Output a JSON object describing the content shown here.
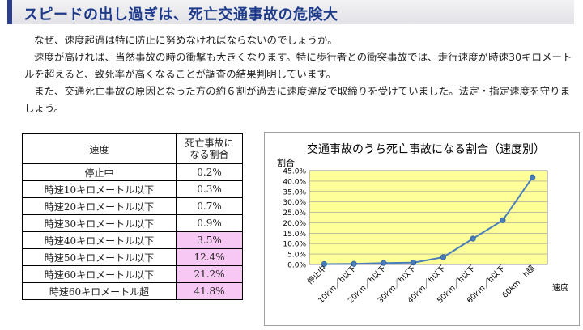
{
  "header": {
    "title": "スピードの出し過ぎは、死亡交通事故の危険大"
  },
  "paragraphs": [
    "なぜ、速度超過は特に防止に努めなければならないのでしょうか。",
    "速度が高ければ、当然事故の時の衝撃も大きくなります。特に歩行者との衝突事故では、走行速度が時速30キロメートルを超えると、致死率が高くなることが調査の結果判明しています。",
    "また、交通死亡事故の原因となった方の約６割が過去に速度違反で取締りを受けていました。法定・指定速度を守りましょう。"
  ],
  "table": {
    "headers": [
      "速度",
      "死亡事故に",
      "なる割合"
    ],
    "rows": [
      {
        "speed": "停止中",
        "rate": "0.2%",
        "highlight": false
      },
      {
        "speed": "時速10キロメートル以下",
        "rate": "0.3%",
        "highlight": false
      },
      {
        "speed": "時速20キロメートル以下",
        "rate": "0.7%",
        "highlight": false
      },
      {
        "speed": "時速30キロメートル以下",
        "rate": "0.9%",
        "highlight": false
      },
      {
        "speed": "時速40キロメートル以下",
        "rate": "3.5%",
        "highlight": true
      },
      {
        "speed": "時速50キロメートル以下",
        "rate": "12.4%",
        "highlight": true
      },
      {
        "speed": "時速60キロメートル以下",
        "rate": "21.2%",
        "highlight": true
      },
      {
        "speed": "時速60キロメートル超",
        "rate": "41.8%",
        "highlight": true
      }
    ]
  },
  "colors": {
    "header_accent": "#2c3e8c",
    "highlight": "#f8c8f4",
    "plot_bg": "#ffff99",
    "line": "#4a7ebb"
  },
  "chart_data": {
    "type": "line",
    "title": "交通事故のうち死亡事故になる割合（速度別）",
    "ylabel": "割合",
    "xlabel": "速度",
    "categories": [
      "停止中",
      "10km／h以下",
      "20km／h以下",
      "30km／h以下",
      "40km／h以下",
      "50km／h以下",
      "60km／h以下",
      "60km／h超"
    ],
    "values": [
      0.2,
      0.3,
      0.7,
      0.9,
      3.5,
      12.4,
      21.2,
      41.8
    ],
    "ylim": [
      0,
      45
    ],
    "yticks": [
      "0.0%",
      "5.0%",
      "10.0%",
      "15.0%",
      "20.0%",
      "25.0%",
      "30.0%",
      "35.0%",
      "40.0%",
      "45.0%"
    ],
    "grid": true,
    "legend": "none"
  }
}
